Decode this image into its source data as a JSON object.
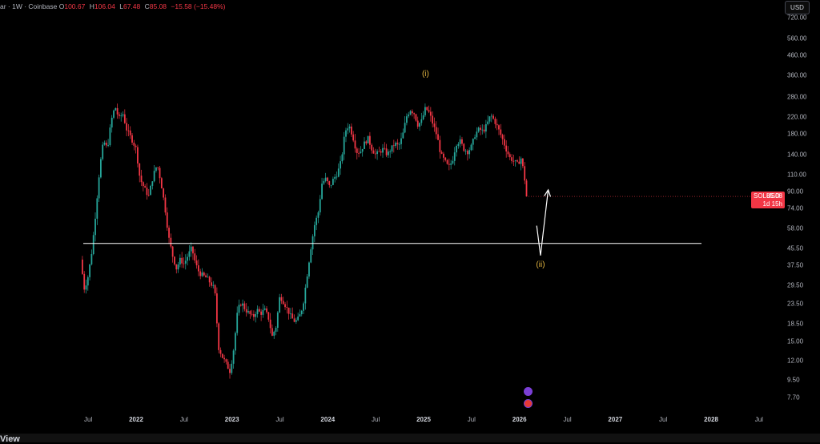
{
  "legend": {
    "symbol_tail": "ar · 1W · Coinbase",
    "open_key": "O",
    "open": "100.67",
    "high_key": "H",
    "high": "106.04",
    "low_key": "L",
    "low": "67.48",
    "close_key": "C",
    "close": "85.08",
    "change": "−15.58 (−15.48%)"
  },
  "currency_button": "USD",
  "last_price": {
    "symbol": "SOLUSD",
    "price": "85.08",
    "countdown": "1d 15h"
  },
  "wave_labels": [
    "(i)",
    "(ii)"
  ],
  "brand_fragment": "View",
  "colors": {
    "up": "#26a69a",
    "down": "#f23645",
    "label": "#e2b540",
    "line": "#ffffff"
  },
  "chart_data": {
    "type": "candlestick",
    "symbol": "SOLUSD",
    "interval": "1W",
    "exchange": "Coinbase",
    "y_scale": "log",
    "y_ticks": [
      7.7,
      9.5,
      12.0,
      15.0,
      18.5,
      23.5,
      29.5,
      37.5,
      45.5,
      58.0,
      74.0,
      90.0,
      110.0,
      140.0,
      180.0,
      220.0,
      280.0,
      360.0,
      460.0,
      560.0,
      720.0
    ],
    "y_tick_labels": [
      "7.70",
      "9.50",
      "12.00",
      "15.00",
      "18.50",
      "23.50",
      "29.50",
      "37.50",
      "45.50",
      "58.00",
      "74.00",
      "90.00",
      "110.00",
      "140.00",
      "180.00",
      "220.00",
      "280.00",
      "360.00",
      "460.00",
      "560.00",
      "720.00"
    ],
    "x_ticks": [
      {
        "label": "Jul",
        "t": 2021.5
      },
      {
        "label": "2022",
        "t": 2022.0,
        "year": true
      },
      {
        "label": "Jul",
        "t": 2022.5
      },
      {
        "label": "2023",
        "t": 2023.0,
        "year": true
      },
      {
        "label": "Jul",
        "t": 2023.5
      },
      {
        "label": "2024",
        "t": 2024.0,
        "year": true
      },
      {
        "label": "Jul",
        "t": 2024.5
      },
      {
        "label": "2025",
        "t": 2025.0,
        "year": true
      },
      {
        "label": "Jul",
        "t": 2025.5
      },
      {
        "label": "2026",
        "t": 2026.0,
        "year": true
      },
      {
        "label": "Jul",
        "t": 2026.5
      },
      {
        "label": "2027",
        "t": 2027.0,
        "year": true
      },
      {
        "label": "Jul",
        "t": 2027.5
      },
      {
        "label": "2028",
        "t": 2028.0,
        "year": true
      },
      {
        "label": "Jul",
        "t": 2028.5
      }
    ],
    "price_path": [
      [
        2021.42,
        40
      ],
      [
        2021.46,
        28
      ],
      [
        2021.5,
        33
      ],
      [
        2021.54,
        45
      ],
      [
        2021.58,
        72
      ],
      [
        2021.62,
        120
      ],
      [
        2021.66,
        165
      ],
      [
        2021.7,
        150
      ],
      [
        2021.74,
        210
      ],
      [
        2021.78,
        250
      ],
      [
        2021.82,
        215
      ],
      [
        2021.86,
        230
      ],
      [
        2021.9,
        190
      ],
      [
        2021.95,
        170
      ],
      [
        2022.0,
        150
      ],
      [
        2022.04,
        105
      ],
      [
        2022.08,
        95
      ],
      [
        2022.13,
        85
      ],
      [
        2022.18,
        110
      ],
      [
        2022.22,
        125
      ],
      [
        2022.26,
        100
      ],
      [
        2022.3,
        75
      ],
      [
        2022.34,
        52
      ],
      [
        2022.38,
        42
      ],
      [
        2022.42,
        36
      ],
      [
        2022.46,
        40
      ],
      [
        2022.5,
        38
      ],
      [
        2022.54,
        42
      ],
      [
        2022.58,
        46
      ],
      [
        2022.62,
        38
      ],
      [
        2022.66,
        34
      ],
      [
        2022.7,
        33
      ],
      [
        2022.74,
        32
      ],
      [
        2022.78,
        30
      ],
      [
        2022.82,
        28
      ],
      [
        2022.86,
        14
      ],
      [
        2022.9,
        12.5
      ],
      [
        2022.94,
        11.5
      ],
      [
        2022.98,
        10.5
      ],
      [
        2023.02,
        14
      ],
      [
        2023.06,
        22
      ],
      [
        2023.1,
        24
      ],
      [
        2023.14,
        22
      ],
      [
        2023.18,
        21
      ],
      [
        2023.22,
        20
      ],
      [
        2023.26,
        22
      ],
      [
        2023.3,
        21
      ],
      [
        2023.34,
        22
      ],
      [
        2023.38,
        20
      ],
      [
        2023.42,
        16
      ],
      [
        2023.46,
        18
      ],
      [
        2023.5,
        26
      ],
      [
        2023.54,
        24
      ],
      [
        2023.58,
        22
      ],
      [
        2023.62,
        20
      ],
      [
        2023.66,
        19
      ],
      [
        2023.7,
        20
      ],
      [
        2023.74,
        23
      ],
      [
        2023.78,
        32
      ],
      [
        2023.82,
        45
      ],
      [
        2023.86,
        60
      ],
      [
        2023.9,
        70
      ],
      [
        2023.94,
        100
      ],
      [
        2023.98,
        105
      ],
      [
        2024.02,
        95
      ],
      [
        2024.06,
        105
      ],
      [
        2024.1,
        112
      ],
      [
        2024.14,
        130
      ],
      [
        2024.18,
        185
      ],
      [
        2024.22,
        200
      ],
      [
        2024.26,
        175
      ],
      [
        2024.3,
        145
      ],
      [
        2024.34,
        145
      ],
      [
        2024.38,
        160
      ],
      [
        2024.42,
        170
      ],
      [
        2024.46,
        150
      ],
      [
        2024.5,
        140
      ],
      [
        2024.54,
        145
      ],
      [
        2024.58,
        150
      ],
      [
        2024.62,
        140
      ],
      [
        2024.66,
        150
      ],
      [
        2024.7,
        160
      ],
      [
        2024.74,
        155
      ],
      [
        2024.78,
        175
      ],
      [
        2024.82,
        220
      ],
      [
        2024.86,
        240
      ],
      [
        2024.9,
        230
      ],
      [
        2024.94,
        200
      ],
      [
        2024.98,
        210
      ],
      [
        2025.02,
        245
      ],
      [
        2025.06,
        230
      ],
      [
        2025.1,
        200
      ],
      [
        2025.14,
        175
      ],
      [
        2025.18,
        140
      ],
      [
        2025.22,
        130
      ],
      [
        2025.26,
        120
      ],
      [
        2025.3,
        130
      ],
      [
        2025.34,
        160
      ],
      [
        2025.38,
        165
      ],
      [
        2025.42,
        150
      ],
      [
        2025.46,
        145
      ],
      [
        2025.5,
        155
      ],
      [
        2025.54,
        180
      ],
      [
        2025.58,
        190
      ],
      [
        2025.62,
        185
      ],
      [
        2025.66,
        200
      ],
      [
        2025.7,
        225
      ],
      [
        2025.74,
        210
      ],
      [
        2025.78,
        190
      ],
      [
        2025.82,
        170
      ],
      [
        2025.86,
        150
      ],
      [
        2025.9,
        135
      ],
      [
        2025.94,
        130
      ],
      [
        2025.98,
        125
      ],
      [
        2026.02,
        135
      ],
      [
        2026.06,
        100
      ],
      [
        2026.09,
        85.08
      ]
    ],
    "horizontal_line": 48.5,
    "projection": [
      [
        2026.18,
        60
      ],
      [
        2026.22,
        42
      ],
      [
        2026.3,
        92
      ]
    ],
    "wave_points": [
      {
        "label": "(i)",
        "t": 2025.02,
        "price": 360
      },
      {
        "label": "(ii)",
        "t": 2026.22,
        "price": 37
      }
    ]
  }
}
